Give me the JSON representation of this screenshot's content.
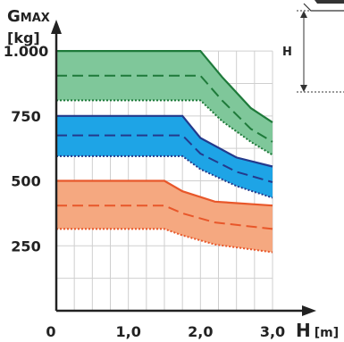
{
  "chart_data": {
    "type": "area",
    "title": "",
    "ylabel_main": "G",
    "ylabel_sub": "MAX",
    "ylabel_unit": "[kg]",
    "xlabel_main": "H",
    "xlabel_unit": "[m]",
    "xlim": [
      0,
      3.0
    ],
    "ylim": [
      0,
      1100
    ],
    "x_ticks": [
      "0",
      "1,0",
      "2,0",
      "3,0"
    ],
    "x_tick_values": [
      0,
      1.0,
      2.0,
      3.0
    ],
    "y_ticks": [
      "250",
      "500",
      "750",
      "1.000"
    ],
    "y_tick_values": [
      250,
      500,
      750,
      1000
    ],
    "grid": true,
    "inset": {
      "label": "H"
    },
    "bands": [
      {
        "color": "#7fc79a",
        "edge": "#1e7a3a",
        "top": [
          [
            0,
            1000
          ],
          [
            2.0,
            1000
          ],
          [
            2.3,
            900
          ],
          [
            2.7,
            780
          ],
          [
            3.0,
            725
          ]
        ],
        "mid": [
          [
            0,
            905
          ],
          [
            2.0,
            905
          ],
          [
            2.3,
            810
          ],
          [
            2.7,
            700
          ],
          [
            3.0,
            650
          ]
        ],
        "bottom": [
          [
            0,
            810
          ],
          [
            2.0,
            810
          ],
          [
            2.3,
            730
          ],
          [
            2.7,
            650
          ],
          [
            3.0,
            600
          ]
        ]
      },
      {
        "color": "#1ea4e6",
        "edge": "#243a8c",
        "top": [
          [
            0,
            750
          ],
          [
            1.75,
            750
          ],
          [
            2.0,
            665
          ],
          [
            2.5,
            590
          ],
          [
            3.0,
            555
          ]
        ],
        "mid": [
          [
            0,
            675
          ],
          [
            1.75,
            675
          ],
          [
            2.0,
            605
          ],
          [
            2.5,
            535
          ],
          [
            3.0,
            495
          ]
        ],
        "bottom": [
          [
            0,
            595
          ],
          [
            1.75,
            595
          ],
          [
            2.0,
            545
          ],
          [
            2.5,
            480
          ],
          [
            3.0,
            435
          ]
        ]
      },
      {
        "color": "#f5a880",
        "edge": "#e8572a",
        "top": [
          [
            0,
            500
          ],
          [
            1.5,
            500
          ],
          [
            1.75,
            460
          ],
          [
            2.2,
            420
          ],
          [
            3.0,
            405
          ]
        ],
        "mid": [
          [
            0,
            405
          ],
          [
            1.5,
            405
          ],
          [
            1.75,
            375
          ],
          [
            2.2,
            340
          ],
          [
            3.0,
            315
          ]
        ],
        "bottom": [
          [
            0,
            315
          ],
          [
            1.5,
            315
          ],
          [
            1.75,
            290
          ],
          [
            2.2,
            255
          ],
          [
            3.0,
            225
          ]
        ]
      }
    ]
  }
}
